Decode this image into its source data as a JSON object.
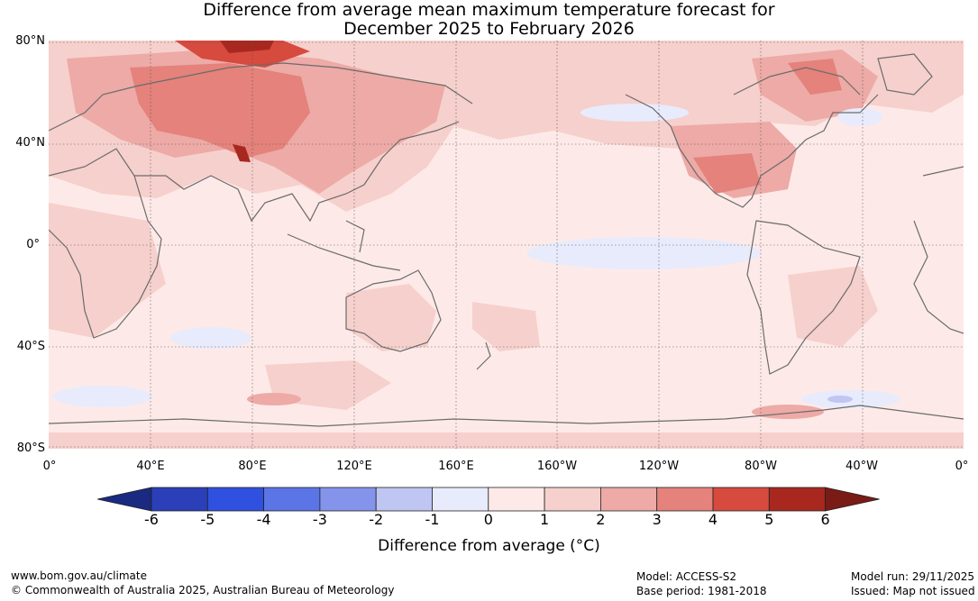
{
  "title": {
    "line1": "Difference from average mean maximum temperature forecast for",
    "line2": "December 2025 to February 2026"
  },
  "lat_labels": [
    "80°N",
    "40°N",
    "0°",
    "40°S",
    "80°S"
  ],
  "lon_labels": [
    "0°",
    "40°E",
    "80°E",
    "120°E",
    "160°E",
    "160°W",
    "120°W",
    "80°W",
    "40°W",
    "0°"
  ],
  "colorbar": {
    "ticks": [
      "-6",
      "-5",
      "-4",
      "-3",
      "-2",
      "-1",
      "0",
      "1",
      "2",
      "3",
      "4",
      "5",
      "6"
    ],
    "colors": [
      "#1a2a80",
      "#2a3fb8",
      "#3050e0",
      "#5b74e6",
      "#8494ea",
      "#bfc6f2",
      "#e8ebfb",
      "#fdeae8",
      "#f6d0cc",
      "#edaaa6",
      "#e4827b",
      "#d74a3e",
      "#a8281f",
      "#7a1b16"
    ],
    "label": "Difference from average (°C)"
  },
  "footer": {
    "url": "www.bom.gov.au/climate",
    "copyright": "© Commonwealth of Australia 2025, Australian Bureau of Meteorology",
    "model": "Model: ACCESS-S2",
    "base_period": "Base period: 1981-2018",
    "model_run": "Model run: 29/11/2025",
    "issued": "Issued: Map not issued"
  }
}
